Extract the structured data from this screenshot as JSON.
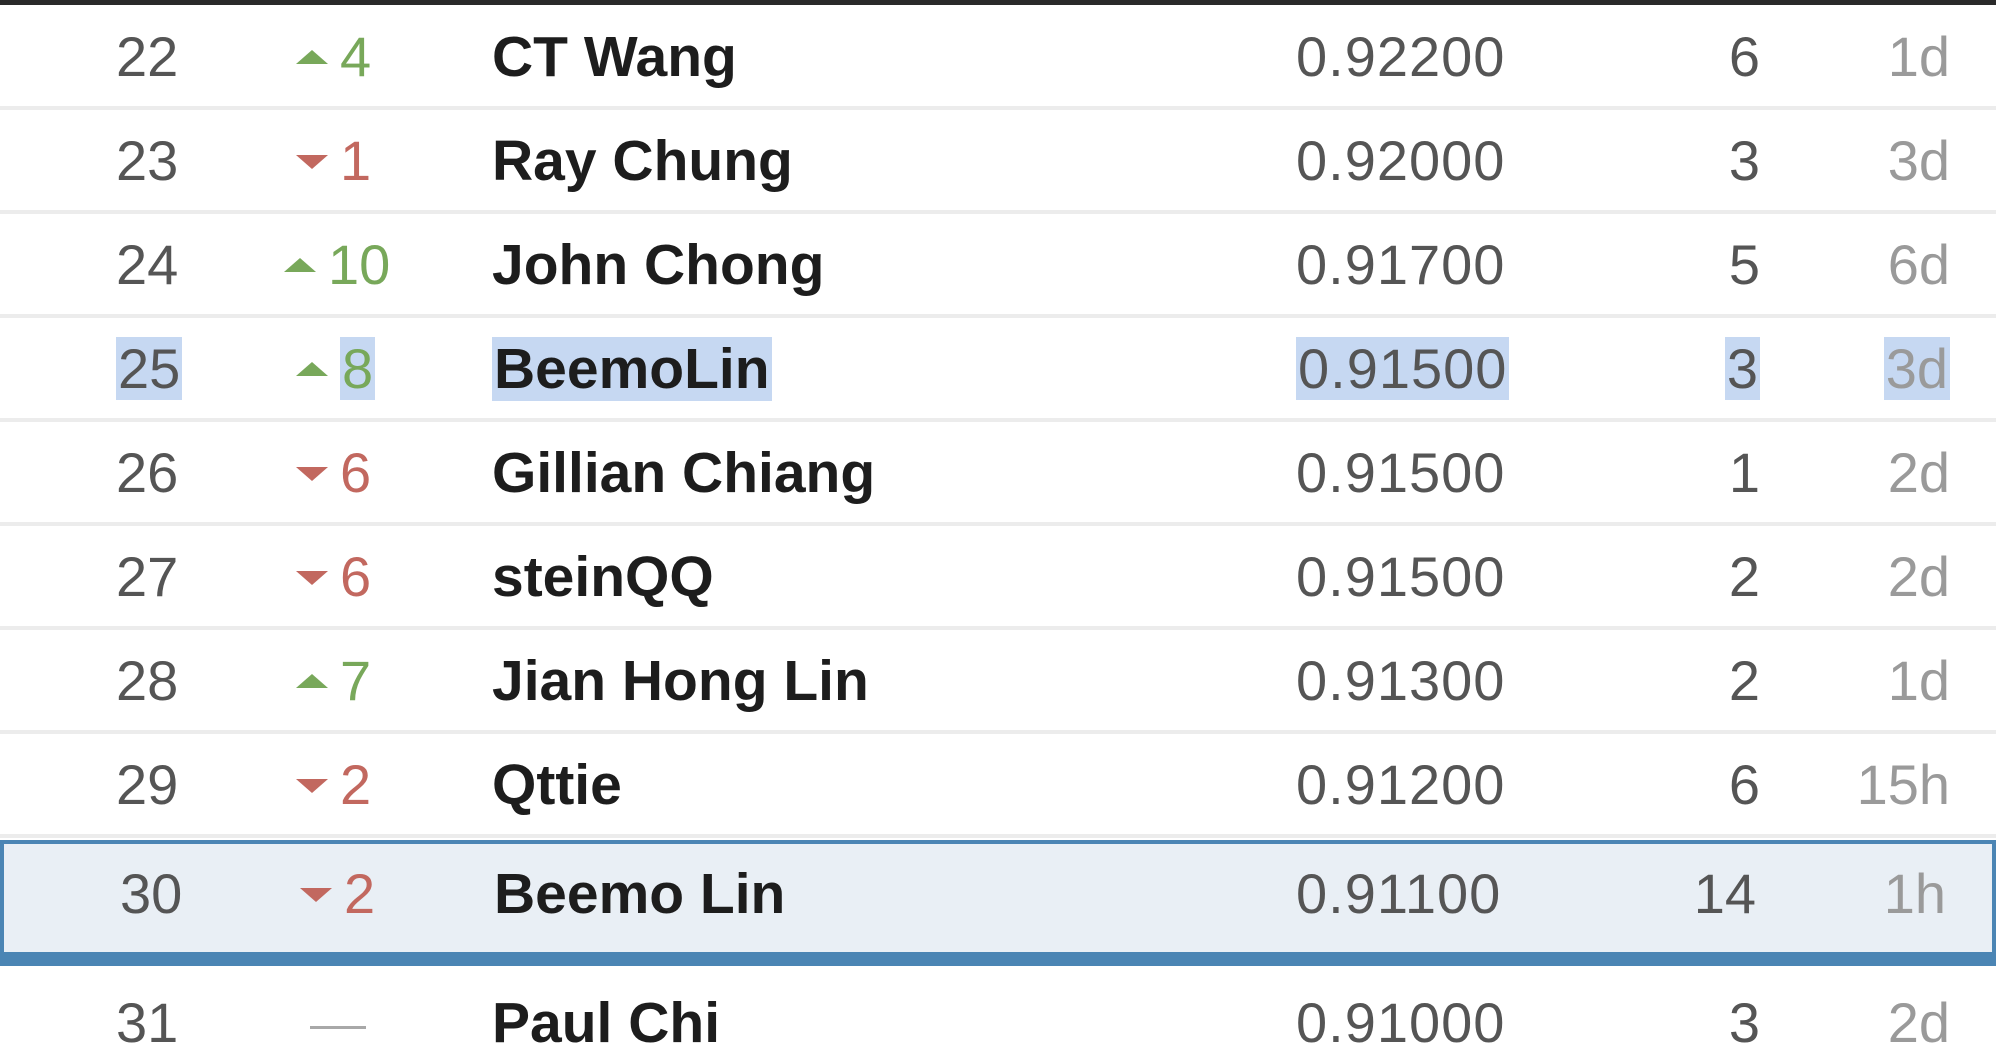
{
  "leaderboard": {
    "rows": [
      {
        "rank": "22",
        "delta": "4",
        "dir": "up",
        "name": "CT Wang",
        "score": "0.92200",
        "entries": "6",
        "last": "1d"
      },
      {
        "rank": "23",
        "delta": "1",
        "dir": "down",
        "name": "Ray Chung",
        "score": "0.92000",
        "entries": "3",
        "last": "3d"
      },
      {
        "rank": "24",
        "delta": "10",
        "dir": "up",
        "name": "John Chong",
        "score": "0.91700",
        "entries": "5",
        "last": "6d"
      },
      {
        "rank": "25",
        "delta": "8",
        "dir": "up",
        "name": "BeemoLin",
        "score": "0.91500",
        "entries": "3",
        "last": "3d"
      },
      {
        "rank": "26",
        "delta": "6",
        "dir": "down",
        "name": "Gillian Chiang",
        "score": "0.91500",
        "entries": "1",
        "last": "2d"
      },
      {
        "rank": "27",
        "delta": "6",
        "dir": "down",
        "name": "steinQQ",
        "score": "0.91500",
        "entries": "2",
        "last": "2d"
      },
      {
        "rank": "28",
        "delta": "7",
        "dir": "up",
        "name": "Jian Hong Lin",
        "score": "0.91300",
        "entries": "2",
        "last": "1d"
      },
      {
        "rank": "29",
        "delta": "2",
        "dir": "down",
        "name": "Qttie",
        "score": "0.91200",
        "entries": "6",
        "last": "15h"
      },
      {
        "rank": "30",
        "delta": "2",
        "dir": "down",
        "name": "Beemo Lin",
        "score": "0.91100",
        "entries": "14",
        "last": "1h"
      },
      {
        "rank": "31",
        "delta": "",
        "dir": "none",
        "name": "Paul Chi",
        "score": "0.91000",
        "entries": "3",
        "last": "2d"
      }
    ]
  },
  "colors": {
    "up": "#78a85a",
    "down": "#c2685f",
    "selection": "#c6d8f2",
    "current_row_border": "#4b85b4",
    "current_row_bg": "#e9eff5"
  },
  "icons": {
    "up": "triangle-up-icon",
    "down": "triangle-down-icon",
    "none": "dash-icon"
  }
}
